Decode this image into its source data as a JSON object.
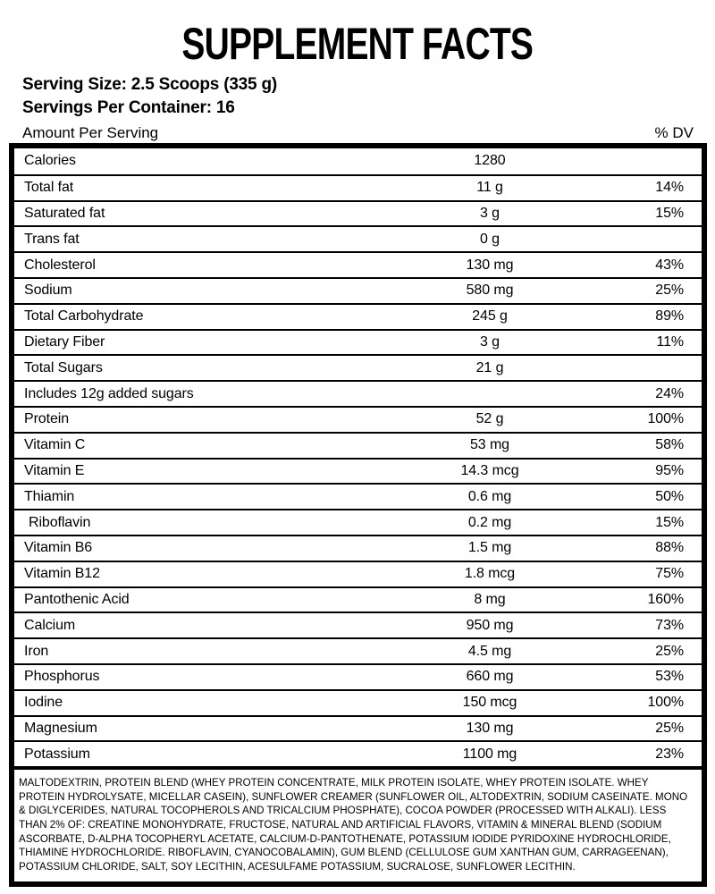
{
  "title": "SUPPLEMENT FACTS",
  "serving": {
    "serving_size_line": "Serving Size: 2.5 Scoops (335 g)",
    "servings_per_container_line": "Servings Per Container: 16"
  },
  "table": {
    "header": {
      "amount_label": "Amount Per Serving",
      "dv_label": "% DV"
    },
    "rows": [
      {
        "name": "Calories",
        "amount": "1280",
        "dv": ""
      },
      {
        "name": "Total fat",
        "amount": "11 g",
        "dv": "14%"
      },
      {
        "name": "Saturated fat",
        "amount": "3 g",
        "dv": "15%"
      },
      {
        "name": "Trans fat",
        "amount": "0 g",
        "dv": ""
      },
      {
        "name": "Cholesterol",
        "amount": "130 mg",
        "dv": "43%"
      },
      {
        "name": "Sodium",
        "amount": "580 mg",
        "dv": "25%"
      },
      {
        "name": "Total Carbohydrate",
        "amount": "245 g",
        "dv": "89%"
      },
      {
        "name": "Dietary Fiber",
        "amount": "3 g",
        "dv": "11%"
      },
      {
        "name": "Total Sugars",
        "amount": "21 g",
        "dv": ""
      },
      {
        "name": "Includes 12g added sugars",
        "amount": "",
        "dv": "24%"
      },
      {
        "name": "Protein",
        "amount": "52 g",
        "dv": "100%"
      },
      {
        "name": "Vitamin C",
        "amount": "53 mg",
        "dv": "58%"
      },
      {
        "name": "Vitamin E",
        "amount": "14.3 mcg",
        "dv": "95%"
      },
      {
        "name": "Thiamin",
        "amount": "0.6 mg",
        "dv": "50%"
      },
      {
        "name": "Riboflavin",
        "amount": "0.2 mg",
        "dv": "15%",
        "indent": true
      },
      {
        "name": "Vitamin B6",
        "amount": "1.5 mg",
        "dv": "88%"
      },
      {
        "name": "Vitamin B12",
        "amount": "1.8 mcg",
        "dv": "75%"
      },
      {
        "name": "Pantothenic Acid",
        "amount": "8 mg",
        "dv": "160%"
      },
      {
        "name": "Calcium",
        "amount": "950 mg",
        "dv": "73%"
      },
      {
        "name": "Iron",
        "amount": "4.5 mg",
        "dv": "25%"
      },
      {
        "name": "Phosphorus",
        "amount": "660 mg",
        "dv": "53%"
      },
      {
        "name": "Iodine",
        "amount": "150 mcg",
        "dv": "100%"
      },
      {
        "name": "Magnesium",
        "amount": "130 mg",
        "dv": "25%"
      },
      {
        "name": "Potassium",
        "amount": "1100 mg",
        "dv": "23%"
      }
    ]
  },
  "ingredients": "MALTODEXTRIN, PROTEIN BLEND (WHEY PROTEIN CONCENTRATE, MILK PROTEIN ISOLATE, WHEY PROTEIN ISOLATE. WHEY PROTEIN HYDROLYSATE, MICELLAR CASEIN), SUNFLOWER CREAMER (SUNFLOWER OIL, ALTODEXTRIN, SODIUM CASEINATE. MONO & DIGLYCERIDES, NATURAL TOCOPHEROLS AND TRICALCIUM PHOSPHATE), COCOA POWDER (PROCESSED WITH ALKALI). LESS THAN 2% OF: CREATINE MONOHYDRATE, FRUCTOSE, NATURAL AND ARTIFICIAL FLAVORS, VITAMIN & MINERAL BLEND (SODIUM ASCORBATE, D-ALPHA TOCOPHERYL ACETATE, CALCIUM-D-PANTOTHENATE, POTASSIUM IODIDE PYRIDOXINE HYDROCHLORIDE, THIAMINE HYDROCHLORIDE. RIBOFLAVIN, CYANOCOBALAMIN), GUM BLEND (CELLULOSE GUM XANTHAN GUM, CARRAGEENAN), POTASSIUM CHLORIDE, SALT, SOY LECITHIN, ACESULFAME POTASSIUM, SUCRALOSE, SUNFLOWER LECITHIN.",
  "colors": {
    "text": "#000000",
    "background": "#ffffff",
    "border": "#000000"
  }
}
